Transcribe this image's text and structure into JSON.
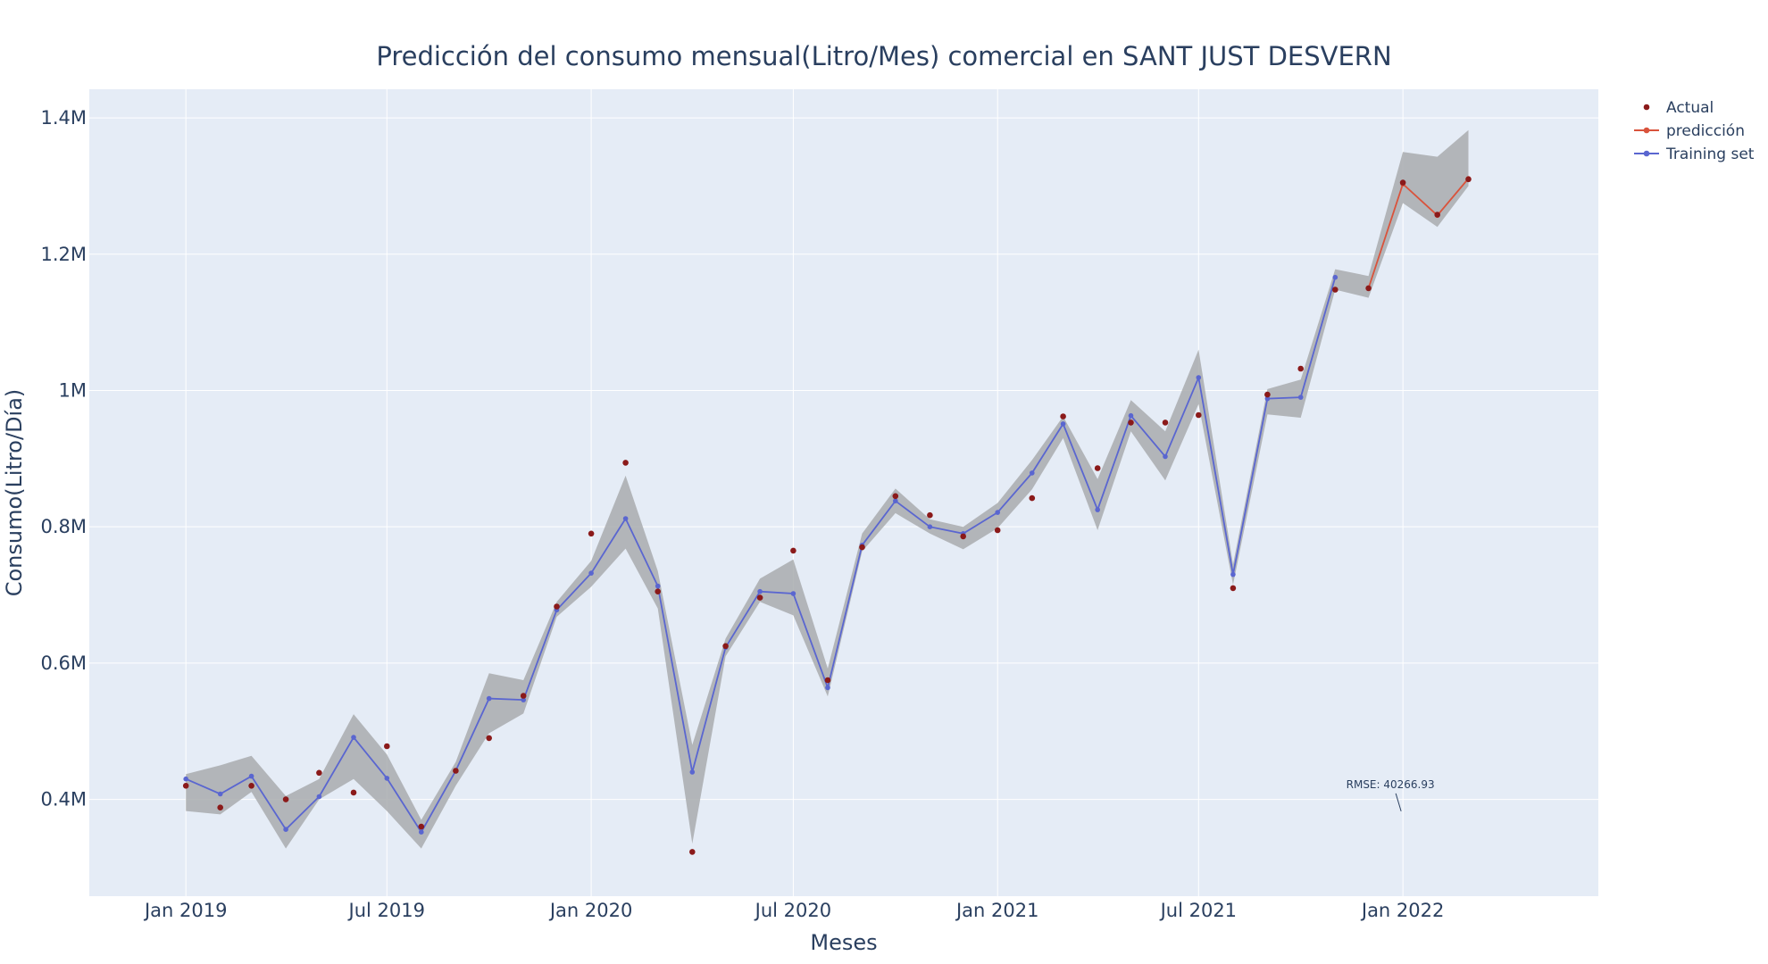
{
  "chart_data": {
    "type": "line",
    "title": "Predicción del consumo mensual(Litro/Mes) comercial en SANT JUST DESVERN",
    "xlabel": "Meses",
    "ylabel": "Consumo(Litro/Día)",
    "x_ticks": [
      "Jan 2019",
      "Jul 2019",
      "Jan 2020",
      "Jul 2020",
      "Jan 2021",
      "Jul 2021",
      "Jan 2022"
    ],
    "y_ticks": [
      "0.4M",
      "0.6M",
      "0.8M",
      "1M",
      "1.2M",
      "1.4M"
    ],
    "xlim": [
      "2018-10-06",
      "2022-06-26"
    ],
    "ylim": [
      258000,
      1442000
    ],
    "grid": true,
    "legend_position": "top-right",
    "colors": {
      "actual": "#8b1a1a",
      "prediction": "#d9533c",
      "training": "#5a66d0",
      "band": "#a9acae",
      "plot_bg": "#e5ecf6"
    },
    "series": [
      {
        "name": "Actual",
        "mode": "markers",
        "x": [
          "2019-01-01",
          "2019-02-01",
          "2019-03-01",
          "2019-04-01",
          "2019-05-01",
          "2019-06-01",
          "2019-07-01",
          "2019-08-01",
          "2019-09-01",
          "2019-10-01",
          "2019-11-01",
          "2019-12-01",
          "2020-01-01",
          "2020-02-01",
          "2020-03-01",
          "2020-04-01",
          "2020-05-01",
          "2020-06-01",
          "2020-07-01",
          "2020-08-01",
          "2020-09-01",
          "2020-10-01",
          "2020-11-01",
          "2020-12-01",
          "2021-01-01",
          "2021-02-01",
          "2021-03-01",
          "2021-04-01",
          "2021-05-01",
          "2021-06-01",
          "2021-07-01",
          "2021-08-01",
          "2021-09-01",
          "2021-10-01",
          "2021-11-01",
          "2021-12-01",
          "2022-01-01",
          "2022-02-01",
          "2022-03-01"
        ],
        "y": [
          420000,
          388000,
          420000,
          400000,
          439000,
          410000,
          478000,
          360000,
          442000,
          490000,
          552000,
          683000,
          790000,
          894000,
          705000,
          323000,
          625000,
          696000,
          765000,
          575000,
          770000,
          845000,
          817000,
          786000,
          795000,
          842000,
          962000,
          886000,
          953000,
          953000,
          964000,
          710000,
          994000,
          1032000,
          1148000,
          1150000,
          1305000,
          1258000,
          1310000
        ]
      },
      {
        "name": "predicción",
        "mode": "lines+markers",
        "x": [
          "2021-12-01",
          "2022-01-01",
          "2022-02-01",
          "2022-03-01"
        ],
        "y": [
          1150000,
          1303000,
          1257000,
          1311000
        ]
      },
      {
        "name": "Training set",
        "mode": "lines+markers",
        "x": [
          "2019-01-01",
          "2019-02-01",
          "2019-03-01",
          "2019-04-01",
          "2019-05-01",
          "2019-06-01",
          "2019-07-01",
          "2019-08-01",
          "2019-09-01",
          "2019-10-01",
          "2019-11-01",
          "2019-12-01",
          "2020-01-01",
          "2020-02-01",
          "2020-03-01",
          "2020-04-01",
          "2020-05-01",
          "2020-06-01",
          "2020-07-01",
          "2020-08-01",
          "2020-09-01",
          "2020-10-01",
          "2020-11-01",
          "2020-12-01",
          "2021-01-01",
          "2021-02-01",
          "2021-03-01",
          "2021-04-01",
          "2021-05-01",
          "2021-06-01",
          "2021-07-01",
          "2021-08-01",
          "2021-09-01",
          "2021-10-01",
          "2021-11-01"
        ],
        "y": [
          430000,
          408000,
          434000,
          356000,
          404000,
          491000,
          431000,
          352000,
          442000,
          548000,
          546000,
          678000,
          732000,
          812000,
          713000,
          440000,
          623000,
          705000,
          702000,
          564000,
          773000,
          838000,
          800000,
          790000,
          821000,
          879000,
          951000,
          825000,
          963000,
          903000,
          1019000,
          730000,
          988000,
          990000,
          1166000
        ]
      }
    ],
    "confidence_band": {
      "x": [
        "2019-01-01",
        "2019-02-01",
        "2019-03-01",
        "2019-04-01",
        "2019-05-01",
        "2019-06-01",
        "2019-07-01",
        "2019-08-01",
        "2019-09-01",
        "2019-10-01",
        "2019-11-01",
        "2019-12-01",
        "2020-01-01",
        "2020-02-01",
        "2020-03-01",
        "2020-04-01",
        "2020-05-01",
        "2020-06-01",
        "2020-07-01",
        "2020-08-01",
        "2020-09-01",
        "2020-10-01",
        "2020-11-01",
        "2020-12-01",
        "2021-01-01",
        "2021-02-01",
        "2021-03-01",
        "2021-04-01",
        "2021-05-01",
        "2021-06-01",
        "2021-07-01",
        "2021-08-01",
        "2021-09-01",
        "2021-10-01",
        "2021-11-01",
        "2021-12-01",
        "2022-01-01",
        "2022-02-01",
        "2022-03-01"
      ],
      "upper": [
        437000,
        450000,
        464000,
        405000,
        430000,
        525000,
        466000,
        370000,
        455000,
        585000,
        575000,
        690000,
        750000,
        875000,
        735000,
        480000,
        636000,
        724000,
        752000,
        592000,
        790000,
        856000,
        811000,
        800000,
        835000,
        898000,
        962000,
        870000,
        986000,
        940000,
        1060000,
        745000,
        1002000,
        1016000,
        1178000,
        1168000,
        1350000,
        1343000,
        1382000
      ],
      "lower": [
        383000,
        378000,
        411000,
        328000,
        400000,
        430000,
        383000,
        328000,
        420000,
        497000,
        526000,
        668000,
        712000,
        768000,
        680000,
        335000,
        610000,
        690000,
        670000,
        551000,
        764000,
        820000,
        790000,
        767000,
        798000,
        855000,
        930000,
        795000,
        940000,
        868000,
        980000,
        715000,
        965000,
        960000,
        1148000,
        1136000,
        1275000,
        1240000,
        1300000
      ]
    },
    "annotations": [
      {
        "text": "RMSE: 40266.93",
        "x": "2022-01-01",
        "y": 380000
      }
    ]
  }
}
